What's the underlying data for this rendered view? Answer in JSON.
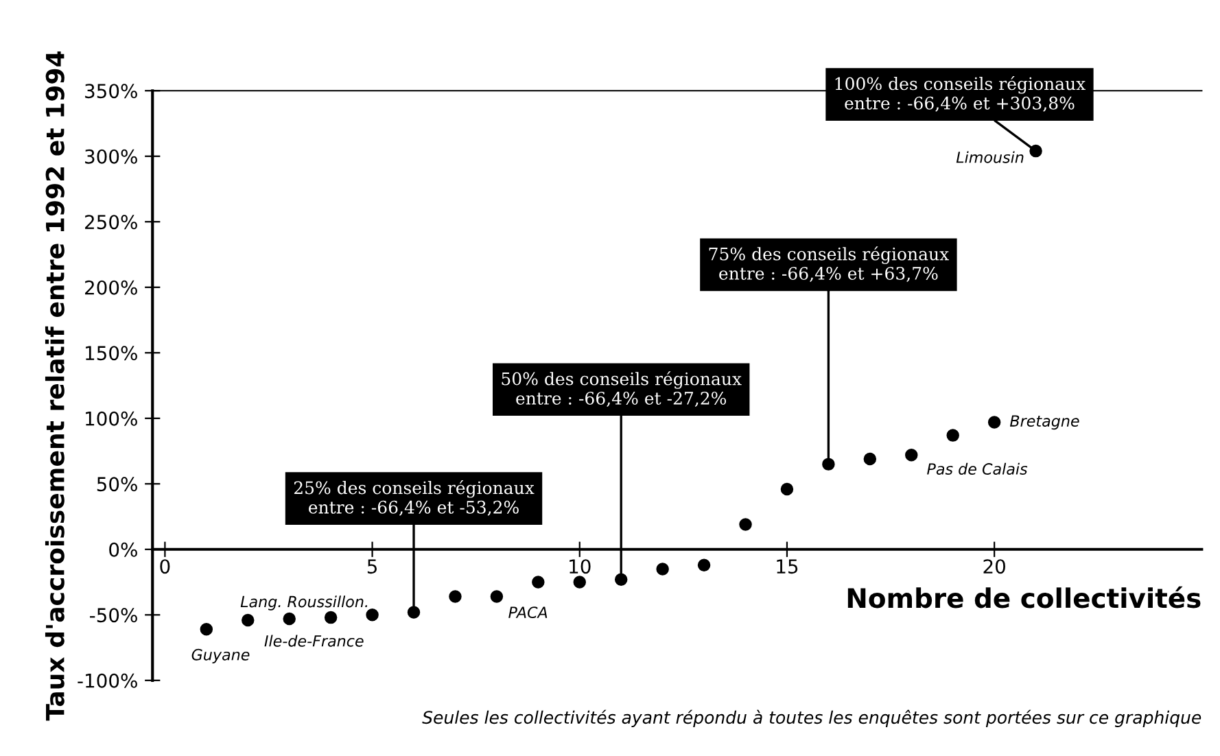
{
  "chart_data": {
    "type": "scatter",
    "xlabel": "Nombre de collectivités",
    "ylabel": "Taux d'accroissement relatif entre 1992 et 1994",
    "x": [
      1,
      2,
      3,
      4,
      5,
      6,
      7,
      8,
      9,
      10,
      11,
      12,
      13,
      14,
      15,
      16,
      17,
      18,
      19,
      20,
      21
    ],
    "series": [
      {
        "color": "#000000",
        "values": [
          -61,
          -54,
          -53,
          -52,
          -50,
          -48,
          -36,
          -36,
          -25,
          -25,
          -23,
          -15,
          -12,
          19,
          46,
          65,
          69,
          72,
          87,
          97,
          304
        ]
      }
    ],
    "marker": "circle",
    "xlim": [
      -0.3,
      25
    ],
    "ylim": [
      -100,
      350
    ],
    "xticks": [
      0,
      5,
      10,
      15,
      20
    ],
    "yticks": [
      {
        "value": -100,
        "label": "-100%"
      },
      {
        "value": -50,
        "label": "-50%"
      },
      {
        "value": 0,
        "label": "0%"
      },
      {
        "value": 50,
        "label": "50%"
      },
      {
        "value": 100,
        "label": "100%"
      },
      {
        "value": 150,
        "label": "150%"
      },
      {
        "value": 200,
        "label": "200%"
      },
      {
        "value": 250,
        "label": "250%"
      },
      {
        "value": 300,
        "label": "300%"
      },
      {
        "value": 350,
        "label": "350%"
      }
    ],
    "grid": false,
    "annotations": [
      {
        "text": "25% des conseils régionaux\nentre : -66,4% et -53,2%",
        "x": 6,
        "y": -48
      },
      {
        "text": "50% des conseils régionaux\nentre : -66,4% et -27,2%",
        "x": 11,
        "y": -23
      },
      {
        "text": "75% des conseils régionaux\nentre : -66,4% et +63,7%",
        "x": 16,
        "y": 65
      },
      {
        "text": "100% des conseils régionaux\nentre : -66,4% et +303,8%",
        "x": 21,
        "y": 304
      },
      {
        "text": "Guyane",
        "x": 1,
        "y": -61
      },
      {
        "text": "Lang. Roussillon.",
        "x": 2,
        "y": -54
      },
      {
        "text": "Ile-de-France",
        "x": 4,
        "y": -52
      },
      {
        "text": "PACA",
        "x": 8,
        "y": -36
      },
      {
        "text": "Pas de Calais",
        "x": 18,
        "y": 72
      },
      {
        "text": "Bretagne",
        "x": 20,
        "y": 97
      },
      {
        "text": "Limousin",
        "x": 21,
        "y": 304
      },
      "Seules les collectivités ayant répondu à toutes les enquêtes sont portées sur ce graphique"
    ]
  }
}
